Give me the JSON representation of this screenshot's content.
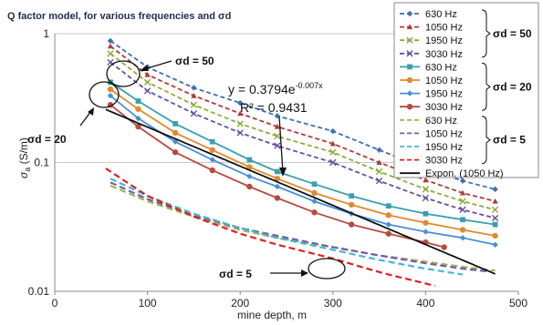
{
  "chart_data": {
    "type": "scatter",
    "title": "Q factor model, for various frequencies and σd",
    "xlabel": "mine depth, m",
    "ylabel": "σa (S/m)",
    "ylabel_main": "σ",
    "ylabel_sub": "a",
    "ylabel_unit": " (S/m)",
    "xlim": [
      0,
      500
    ],
    "ylim": [
      0.01,
      1
    ],
    "yscale": "log",
    "x_ticks": [
      0,
      100,
      200,
      300,
      400,
      500
    ],
    "y_ticks": [
      {
        "value": 0.01,
        "label": "0.01"
      },
      {
        "value": 0.1,
        "label": "0.1"
      },
      {
        "value": 1,
        "label": "1"
      }
    ],
    "legend_position": "right",
    "series": [
      {
        "name": "630 Hz",
        "group": "σd = 50",
        "color": "#3f6fb4",
        "marker": "diamond",
        "dashed": true,
        "points": [
          [
            60,
            0.88
          ],
          [
            100,
            0.55
          ],
          [
            150,
            0.38
          ],
          [
            200,
            0.29
          ],
          [
            240,
            0.23
          ],
          [
            300,
            0.175
          ],
          [
            350,
            0.125
          ],
          [
            400,
            0.09
          ],
          [
            440,
            0.072
          ],
          [
            475,
            0.062
          ]
        ]
      },
      {
        "name": "1050 Hz",
        "group": "σd = 50",
        "color": "#b23a3a",
        "marker": "triangle",
        "dashed": true,
        "points": [
          [
            60,
            0.8
          ],
          [
            100,
            0.48
          ],
          [
            150,
            0.33
          ],
          [
            200,
            0.24
          ],
          [
            240,
            0.19
          ],
          [
            300,
            0.14
          ],
          [
            350,
            0.1
          ],
          [
            400,
            0.073
          ],
          [
            440,
            0.058
          ],
          [
            475,
            0.05
          ]
        ]
      },
      {
        "name": "1950 Hz",
        "group": "σd = 50",
        "color": "#8aad3c",
        "marker": "x",
        "dashed": true,
        "points": [
          [
            60,
            0.7
          ],
          [
            100,
            0.42
          ],
          [
            150,
            0.28
          ],
          [
            200,
            0.2
          ],
          [
            240,
            0.16
          ],
          [
            300,
            0.12
          ],
          [
            350,
            0.085
          ],
          [
            400,
            0.062
          ],
          [
            440,
            0.05
          ],
          [
            475,
            0.043
          ]
        ]
      },
      {
        "name": "3030 Hz",
        "group": "σd = 50",
        "color": "#6b4ea0",
        "marker": "x",
        "dashed": true,
        "points": [
          [
            60,
            0.6
          ],
          [
            100,
            0.36
          ],
          [
            150,
            0.24
          ],
          [
            200,
            0.17
          ],
          [
            240,
            0.135
          ],
          [
            300,
            0.1
          ],
          [
            350,
            0.072
          ],
          [
            400,
            0.053
          ],
          [
            440,
            0.043
          ],
          [
            475,
            0.037
          ]
        ]
      },
      {
        "name": "630 Hz",
        "group": "σd = 20",
        "color": "#3aa0b0",
        "marker": "square",
        "dashed": false,
        "points": [
          [
            60,
            0.42
          ],
          [
            90,
            0.3
          ],
          [
            130,
            0.2
          ],
          [
            170,
            0.145
          ],
          [
            210,
            0.105
          ],
          [
            240,
            0.085
          ],
          [
            280,
            0.068
          ],
          [
            320,
            0.055
          ],
          [
            360,
            0.046
          ],
          [
            400,
            0.04
          ],
          [
            440,
            0.036
          ],
          [
            475,
            0.033
          ]
        ]
      },
      {
        "name": "1050 Hz",
        "group": "σd = 20",
        "color": "#e08a2e",
        "marker": "circle",
        "dashed": false,
        "points": [
          [
            60,
            0.37
          ],
          [
            90,
            0.26
          ],
          [
            130,
            0.17
          ],
          [
            170,
            0.125
          ],
          [
            210,
            0.092
          ],
          [
            240,
            0.075
          ],
          [
            280,
            0.058
          ],
          [
            320,
            0.047
          ],
          [
            360,
            0.039
          ],
          [
            400,
            0.034
          ],
          [
            440,
            0.03
          ],
          [
            475,
            0.027
          ]
        ]
      },
      {
        "name": "1950 Hz",
        "group": "σd = 20",
        "color": "#4a8fd6",
        "marker": "diamond",
        "dashed": false,
        "points": [
          [
            60,
            0.33
          ],
          [
            90,
            0.22
          ],
          [
            130,
            0.145
          ],
          [
            170,
            0.105
          ],
          [
            210,
            0.078
          ],
          [
            240,
            0.065
          ],
          [
            280,
            0.05
          ],
          [
            320,
            0.04
          ],
          [
            360,
            0.033
          ],
          [
            400,
            0.029
          ],
          [
            440,
            0.026
          ],
          [
            475,
            0.023
          ]
        ]
      },
      {
        "name": "3030 Hz",
        "group": "σd = 20",
        "color": "#b84a42",
        "marker": "circle",
        "dashed": false,
        "points": [
          [
            60,
            0.28
          ],
          [
            90,
            0.19
          ],
          [
            130,
            0.12
          ],
          [
            170,
            0.087
          ],
          [
            210,
            0.065
          ],
          [
            240,
            0.053
          ],
          [
            280,
            0.041
          ],
          [
            320,
            0.033
          ],
          [
            360,
            0.028
          ],
          [
            400,
            0.024
          ],
          [
            420,
            0.022
          ]
        ]
      },
      {
        "name": "630 Hz",
        "group": "σd = 5",
        "color": "#9bb84a",
        "marker": "none",
        "dashed": true,
        "points": [
          [
            60,
            0.066
          ],
          [
            100,
            0.05
          ],
          [
            150,
            0.038
          ],
          [
            200,
            0.03
          ],
          [
            240,
            0.026
          ],
          [
            300,
            0.022
          ],
          [
            350,
            0.019
          ],
          [
            400,
            0.017
          ],
          [
            440,
            0.0155
          ],
          [
            475,
            0.0145
          ]
        ]
      },
      {
        "name": "1050 Hz",
        "group": "σd = 5",
        "color": "#7a5aa8",
        "marker": "none",
        "dashed": true,
        "points": [
          [
            60,
            0.07
          ],
          [
            100,
            0.052
          ],
          [
            150,
            0.039
          ],
          [
            200,
            0.031
          ],
          [
            240,
            0.027
          ],
          [
            300,
            0.022
          ],
          [
            350,
            0.019
          ],
          [
            400,
            0.0165
          ],
          [
            440,
            0.015
          ],
          [
            470,
            0.0142
          ]
        ]
      },
      {
        "name": "1950 Hz",
        "group": "σd = 5",
        "color": "#44b6d8",
        "marker": "none",
        "dashed": true,
        "points": [
          [
            60,
            0.075
          ],
          [
            100,
            0.055
          ],
          [
            150,
            0.04
          ],
          [
            200,
            0.031
          ],
          [
            240,
            0.026
          ],
          [
            300,
            0.021
          ],
          [
            350,
            0.0175
          ],
          [
            400,
            0.015
          ],
          [
            440,
            0.0135
          ]
        ]
      },
      {
        "name": "3030 Hz",
        "group": "σd = 5",
        "color": "#e02020",
        "marker": "none",
        "dashed": true,
        "points": [
          [
            55,
            0.09
          ],
          [
            100,
            0.055
          ],
          [
            150,
            0.038
          ],
          [
            200,
            0.028
          ],
          [
            240,
            0.023
          ],
          [
            300,
            0.018
          ],
          [
            330,
            0.0155
          ],
          [
            360,
            0.0135
          ],
          [
            400,
            0.0115
          ],
          [
            410,
            0.011
          ]
        ]
      }
    ],
    "legend_trend": {
      "name": "Expon. (1050 Hz)",
      "color": "#111111"
    },
    "trendline": {
      "a": 0.3794,
      "b": -0.007,
      "x_range": [
        55,
        475
      ]
    },
    "legend_groups": [
      "σd = 50",
      "σd = 20",
      "σd = 5"
    ],
    "annotations": {
      "equation_prefix": "y = 0.3794e",
      "equation_exp": "-0.007x",
      "r2": "R² = 0.9431",
      "label_50": "σd = 50",
      "label_20": "σd = 20",
      "label_5": "σd = 5"
    }
  }
}
